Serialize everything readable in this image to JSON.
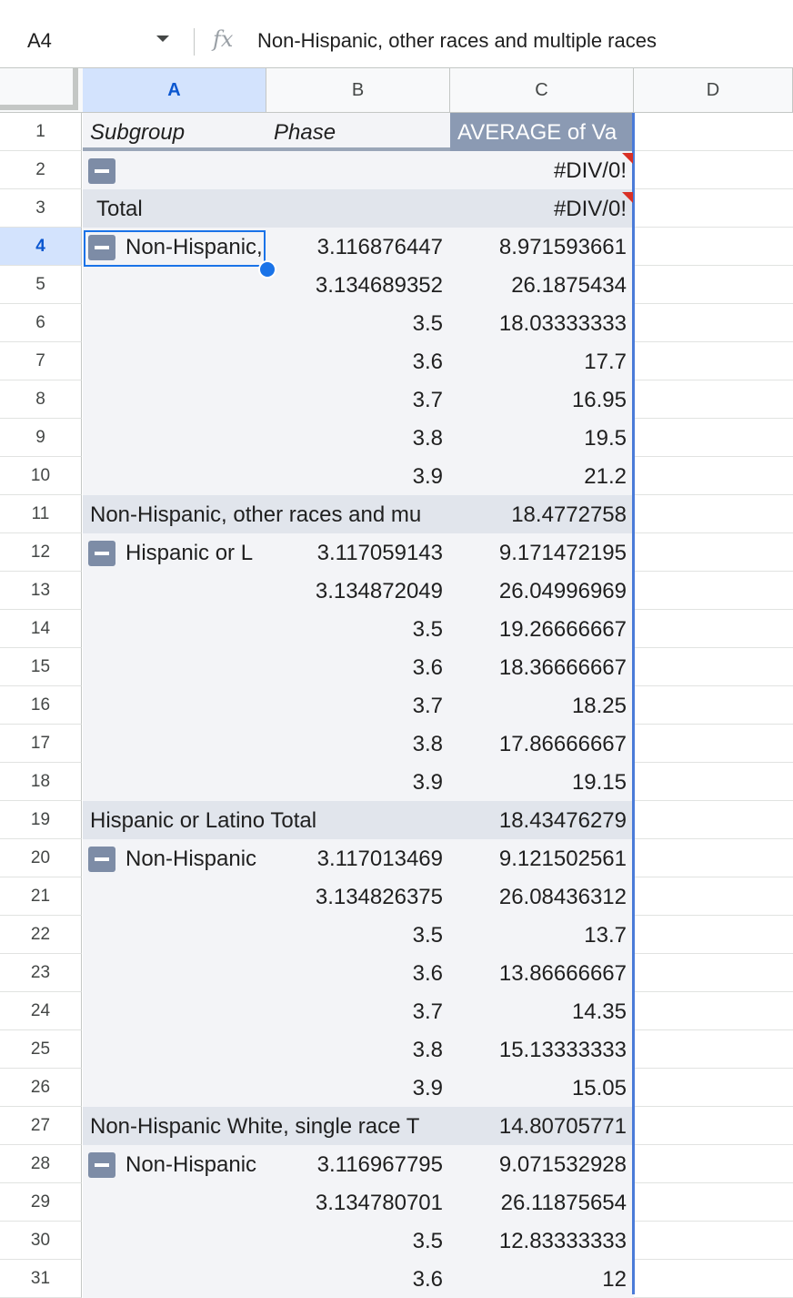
{
  "formula_bar": {
    "name_box": "A4",
    "fx_label": "fx",
    "content": "Non-Hispanic, other races and multiple races"
  },
  "columns": [
    "A",
    "B",
    "C",
    "D"
  ],
  "active_column": "A",
  "active_row": "4",
  "rows": [
    {
      "n": "1",
      "a": "Subgroup",
      "b": "Phase",
      "c": "AVERAGE of Va"
    },
    {
      "n": "2",
      "a": "",
      "b": "",
      "c": "#DIV/0!"
    },
    {
      "n": "3",
      "a": "Total",
      "b": "",
      "c": "#DIV/0!"
    },
    {
      "n": "4",
      "a": "Non-Hispanic, other races and multiple races",
      "b": "3.116876447",
      "c": "8.971593661"
    },
    {
      "n": "5",
      "a": "",
      "b": "3.134689352",
      "c": "26.1875434"
    },
    {
      "n": "6",
      "a": "",
      "b": "3.5",
      "c": "18.03333333"
    },
    {
      "n": "7",
      "a": "",
      "b": "3.6",
      "c": "17.7"
    },
    {
      "n": "8",
      "a": "",
      "b": "3.7",
      "c": "16.95"
    },
    {
      "n": "9",
      "a": "",
      "b": "3.8",
      "c": "19.5"
    },
    {
      "n": "10",
      "a": "",
      "b": "3.9",
      "c": "21.2"
    },
    {
      "n": "11",
      "a": "Non-Hispanic, other races and mu",
      "b": "",
      "c": "18.4772758"
    },
    {
      "n": "12",
      "a": "Hispanic or L",
      "b": "3.117059143",
      "c": "9.171472195"
    },
    {
      "n": "13",
      "a": "",
      "b": "3.134872049",
      "c": "26.04996969"
    },
    {
      "n": "14",
      "a": "",
      "b": "3.5",
      "c": "19.26666667"
    },
    {
      "n": "15",
      "a": "",
      "b": "3.6",
      "c": "18.36666667"
    },
    {
      "n": "16",
      "a": "",
      "b": "3.7",
      "c": "18.25"
    },
    {
      "n": "17",
      "a": "",
      "b": "3.8",
      "c": "17.86666667"
    },
    {
      "n": "18",
      "a": "",
      "b": "3.9",
      "c": "19.15"
    },
    {
      "n": "19",
      "a": "Hispanic or Latino Total",
      "b": "",
      "c": "18.43476279"
    },
    {
      "n": "20",
      "a": "Non-Hispanic",
      "b": "3.117013469",
      "c": "9.121502561"
    },
    {
      "n": "21",
      "a": "",
      "b": "3.134826375",
      "c": "26.08436312"
    },
    {
      "n": "22",
      "a": "",
      "b": "3.5",
      "c": "13.7"
    },
    {
      "n": "23",
      "a": "",
      "b": "3.6",
      "c": "13.86666667"
    },
    {
      "n": "24",
      "a": "",
      "b": "3.7",
      "c": "14.35"
    },
    {
      "n": "25",
      "a": "",
      "b": "3.8",
      "c": "15.13333333"
    },
    {
      "n": "26",
      "a": "",
      "b": "3.9",
      "c": "15.05"
    },
    {
      "n": "27",
      "a": "Non-Hispanic White, single race T",
      "b": "",
      "c": "14.80705771"
    },
    {
      "n": "28",
      "a": "Non-Hispanic",
      "b": "3.116967795",
      "c": "9.071532928"
    },
    {
      "n": "29",
      "a": "",
      "b": "3.134780701",
      "c": "26.11875654"
    },
    {
      "n": "30",
      "a": "",
      "b": "3.5",
      "c": "12.83333333"
    },
    {
      "n": "31",
      "a": "",
      "b": "3.6",
      "c": "12"
    }
  ]
}
